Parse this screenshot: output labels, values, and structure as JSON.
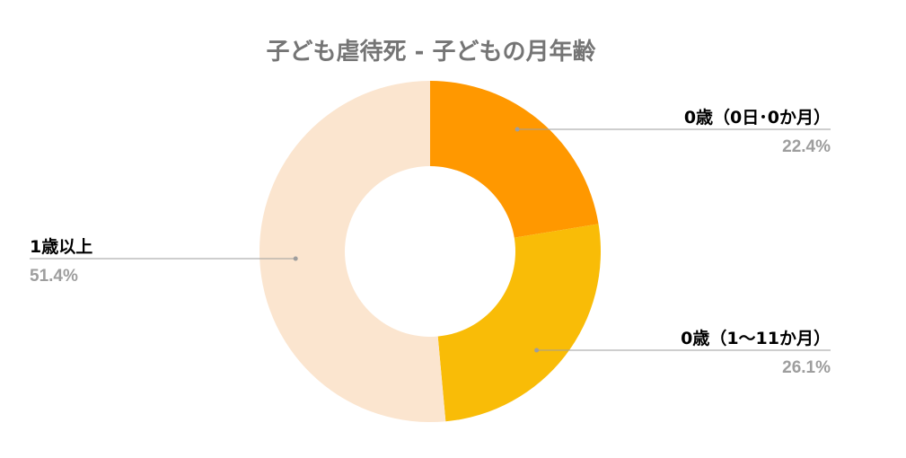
{
  "chart_data": {
    "type": "pie",
    "variant": "donut",
    "title": "子ども虐待死 - 子どもの月年齢",
    "slices": [
      {
        "label": "0歳（0日･0か月）",
        "value": 22.4,
        "value_label": "22.4%",
        "color": "#ff9800"
      },
      {
        "label": "0歳（1〜11か月）",
        "value": 26.1,
        "value_label": "26.1%",
        "color": "#f9bc07"
      },
      {
        "label": "1歳以上",
        "value": 51.4,
        "value_label": "51.4%",
        "color": "#fbe5cf"
      }
    ],
    "legend": "none",
    "leader_color": "#9e9e9e"
  }
}
